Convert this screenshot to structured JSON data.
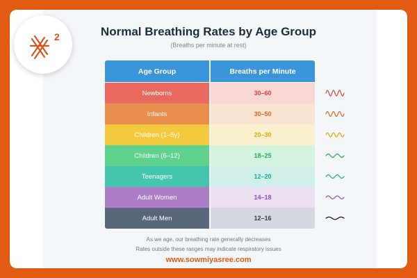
{
  "title": "Normal Breathing Rates by Age Group",
  "subtitle": "(Breaths per minute at rest)",
  "table": {
    "headers": [
      "Age Group",
      "Breaths per Minute"
    ],
    "rows": [
      {
        "group": "Newborns",
        "rate": "30–60",
        "color": "#e9695f",
        "light": "#f7d6d4",
        "text": "#d8443b"
      },
      {
        "group": "Infants",
        "rate": "30–50",
        "color": "#e98e4c",
        "light": "#f8e3d2",
        "text": "#d46a1e"
      },
      {
        "group": "Children (1–5y)",
        "rate": "20–30",
        "color": "#f4c93d",
        "light": "#faf0cf",
        "text": "#e0a800"
      },
      {
        "group": "Children (6–12)",
        "rate": "18–25",
        "color": "#5fd38d",
        "light": "#d4f3df",
        "text": "#2aa85c"
      },
      {
        "group": "Teenagers",
        "rate": "12–20",
        "color": "#43c6ad",
        "light": "#d0efe9",
        "text": "#1ea88c"
      },
      {
        "group": "Adult Women",
        "rate": "14–18",
        "color": "#ad7dc8",
        "light": "#ecdff2",
        "text": "#8b4fb0"
      },
      {
        "group": "Adult Men",
        "rate": "12–16",
        "color": "#59677a",
        "light": "#d5d9df",
        "text": "#2f3a4a"
      }
    ]
  },
  "wave_icons": [
    {
      "color": "#d8443b"
    },
    {
      "color": "#d46a1e"
    },
    {
      "color": "#e0a800"
    },
    {
      "color": "#2aa85c"
    },
    {
      "color": "#1ea88c"
    },
    {
      "color": "#8b4fb0"
    },
    {
      "color": "#111111"
    }
  ],
  "footer": {
    "line1": "As we age, our breathing rate generally decreases",
    "line2": "Rates outside these ranges may indicate respiratory issues"
  },
  "website": "www.sowmiyasree.com",
  "logo": {
    "superscript": "2",
    "icon": "x2-logo-icon"
  }
}
